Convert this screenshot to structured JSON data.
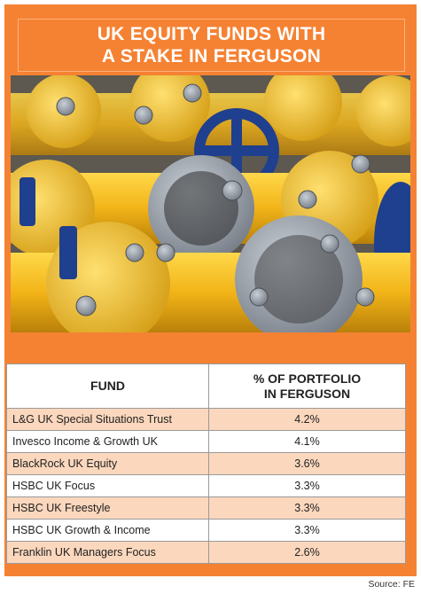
{
  "title": "UK EQUITY FUNDS WITH\nA STAKE IN FERGUSON",
  "photo": {
    "subject": "yellow industrial pipe valves with blue handwheels"
  },
  "colors": {
    "accent": "#f58233",
    "row_shade": "#fbd7bd",
    "valve": "#f2b418",
    "handwheel": "#1f3f8f"
  },
  "chart_data": {
    "type": "table",
    "title": "UK EQUITY FUNDS WITH A STAKE IN FERGUSON",
    "columns": [
      "FUND",
      "% OF PORTFOLIO\nIN FERGUSON"
    ],
    "rows": [
      {
        "fund": "L&G UK Special Situations Trust",
        "pct": "4.2%"
      },
      {
        "fund": "Invesco Income & Growth UK",
        "pct": "4.1%"
      },
      {
        "fund": "BlackRock UK Equity",
        "pct": "3.6%"
      },
      {
        "fund": "HSBC UK Focus",
        "pct": "3.3%"
      },
      {
        "fund": "HSBC UK Freestyle",
        "pct": "3.3%"
      },
      {
        "fund": "HSBC UK Growth & Income",
        "pct": "3.3%"
      },
      {
        "fund": "Franklin UK Managers Focus",
        "pct": "2.6%"
      }
    ],
    "source": "Source: FE"
  }
}
